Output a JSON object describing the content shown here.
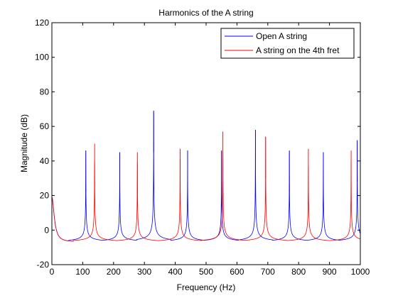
{
  "chart_data": {
    "type": "line",
    "title": "Harmonics of the A string",
    "xlabel": "Frequency (Hz)",
    "ylabel": "Magnitude (dB)",
    "xlim": [
      0,
      1000
    ],
    "ylim": [
      -20,
      120
    ],
    "xticks": [
      0,
      100,
      200,
      300,
      400,
      500,
      600,
      700,
      800,
      900,
      1000
    ],
    "yticks": [
      -20,
      0,
      20,
      40,
      60,
      80,
      100,
      120
    ],
    "grid": false,
    "legend_position": "top-right",
    "series": [
      {
        "name": "Open A string",
        "color": "#0000ff",
        "fundamental_hz": 110,
        "peaks": [
          {
            "x": 110,
            "y": 46
          },
          {
            "x": 220,
            "y": 45
          },
          {
            "x": 330,
            "y": 69
          },
          {
            "x": 440,
            "y": 46
          },
          {
            "x": 550,
            "y": 46
          },
          {
            "x": 660,
            "y": 58
          },
          {
            "x": 770,
            "y": 46
          },
          {
            "x": 880,
            "y": 45
          },
          {
            "x": 990,
            "y": 52
          }
        ],
        "trough_y": -7
      },
      {
        "name": "A string on the 4th fret",
        "color": "#ff0000",
        "fundamental_hz": 138.6,
        "peaks": [
          {
            "x": 138.6,
            "y": 50
          },
          {
            "x": 277.2,
            "y": 45
          },
          {
            "x": 415.8,
            "y": 47
          },
          {
            "x": 554.4,
            "y": 57
          },
          {
            "x": 693,
            "y": 54
          },
          {
            "x": 831.6,
            "y": 47
          },
          {
            "x": 970.2,
            "y": 46
          }
        ],
        "trough_y": -7
      }
    ]
  }
}
